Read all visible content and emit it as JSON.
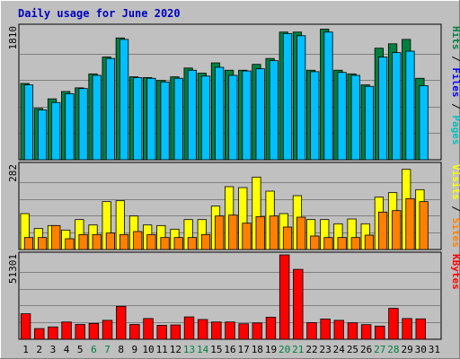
{
  "chart_data": {
    "type": "bar",
    "title": "Daily usage for June 2020",
    "colors": {
      "background": "#bfbfbf",
      "frame": "#c0c0c0",
      "plot": "#c0c0c0",
      "gridline": "#808080",
      "hits": "#008040",
      "files": "#00c0ff",
      "pages": "#00c0c0",
      "visits": "#ffff00",
      "sites": "#ff8000",
      "kbytes": "#ff0000",
      "title": "#0000c0",
      "weekend": "#008040",
      "weekday": "#000000",
      "separator": "#000000"
    },
    "categories": [
      "1",
      "2",
      "3",
      "4",
      "5",
      "6",
      "7",
      "8",
      "9",
      "10",
      "11",
      "12",
      "13",
      "14",
      "15",
      "16",
      "17",
      "18",
      "19",
      "20",
      "21",
      "22",
      "23",
      "24",
      "25",
      "26",
      "27",
      "28",
      "29",
      "30",
      "31"
    ],
    "weekend_days": [
      "6",
      "7",
      "13",
      "14",
      "20",
      "21",
      "27",
      "28"
    ],
    "panels": [
      {
        "name": "hits-files-pages",
        "ymax_label": "1810",
        "ymax": 1810,
        "gridlines": [
          0.2,
          0.4,
          0.6,
          0.8
        ],
        "right_label": [
          {
            "text": "Pages",
            "color": "#00c0c0"
          },
          {
            "text": " / ",
            "color": "#000000"
          },
          {
            "text": "Files",
            "color": "#0000ff"
          },
          {
            "text": " / ",
            "color": "#000000"
          },
          {
            "text": "Hits",
            "color": "#008040"
          }
        ],
        "series": [
          {
            "name": "Hits",
            "values": [
              1040,
              700,
              830,
              930,
              980,
              1170,
              1400,
              1660,
              1130,
              1120,
              1080,
              1130,
              1250,
              1180,
              1320,
              1220,
              1220,
              1300,
              1380,
              1740,
              1740,
              1220,
              1780,
              1220,
              1170,
              1020,
              1520,
              1580,
              1640,
              1110,
              0
            ]
          },
          {
            "name": "Files",
            "values": [
              1020,
              680,
              780,
              900,
              970,
              1150,
              1380,
              1640,
              1120,
              1110,
              1060,
              1110,
              1220,
              1140,
              1260,
              1150,
              1210,
              1240,
              1350,
              1720,
              1690,
              1200,
              1740,
              1190,
              1150,
              1000,
              1400,
              1460,
              1480,
              1010,
              0
            ]
          }
        ]
      },
      {
        "name": "visits-sites",
        "ymax_label": "282",
        "ymax": 282,
        "gridlines": [
          0.2,
          0.4,
          0.6,
          0.8
        ],
        "right_label": [
          {
            "text": "Sites",
            "color": "#ff8000"
          },
          {
            "text": " / ",
            "color": "#000000"
          },
          {
            "text": "Visits",
            "color": "#ffff00"
          }
        ],
        "series": [
          {
            "name": "Visits",
            "values": [
              120,
              70,
              80,
              65,
              100,
              82,
              160,
              163,
              112,
              82,
              80,
              68,
              100,
              100,
              145,
              210,
              207,
              242,
              195,
              120,
              180,
              100,
              100,
              86,
              102,
              86,
              175,
              190,
              268,
              200,
              0
            ]
          },
          {
            "name": "Sites",
            "values": [
              40,
              40,
              80,
              36,
              50,
              50,
              55,
              50,
              60,
              50,
              40,
              40,
              40,
              50,
              112,
              115,
              88,
              110,
              112,
              75,
              108,
              45,
              40,
              40,
              40,
              48,
              125,
              130,
              170,
              160,
              0
            ]
          }
        ]
      },
      {
        "name": "kbytes",
        "ymax_label": "51301",
        "ymax": 51301,
        "gridlines": [
          0.2,
          0.4,
          0.6,
          0.8
        ],
        "right_label": [
          {
            "text": "KBytes",
            "color": "#ff0000"
          }
        ],
        "series": [
          {
            "name": "KBytes",
            "values": [
              15500,
              6500,
              7500,
              10500,
              9000,
              9600,
              11500,
              20000,
              9000,
              12600,
              8500,
              8700,
              13600,
              12000,
              10500,
              10500,
              9400,
              9900,
              13400,
              51300,
              42500,
              10100,
              12300,
              11500,
              10000,
              8900,
              8000,
              18800,
              12600,
              12400,
              0
            ]
          }
        ]
      }
    ]
  }
}
